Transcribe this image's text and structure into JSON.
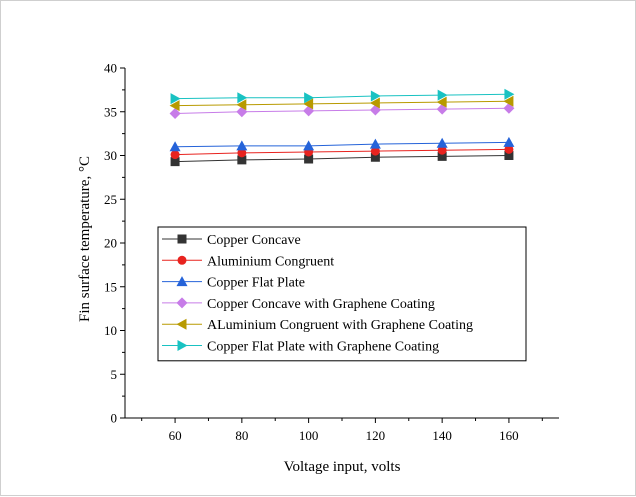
{
  "chart_data": {
    "type": "line",
    "xlabel": "Voltage input, volts",
    "ylabel": "Fin surface temperature, °C",
    "xlim": [
      45,
      175
    ],
    "ylim": [
      0,
      40
    ],
    "x": [
      60,
      80,
      100,
      120,
      140,
      160
    ],
    "x_ticks": [
      "60",
      "80",
      "100",
      "120",
      "140",
      "160"
    ],
    "y_ticks": [
      "0",
      "5",
      "10",
      "15",
      "20",
      "25",
      "30",
      "35",
      "40"
    ],
    "grid": false,
    "legend_position": "lower-left inside plot",
    "series": [
      {
        "name": "Copper Concave",
        "marker": "square",
        "color": "#333333",
        "values": [
          29.3,
          29.5,
          29.6,
          29.8,
          29.9,
          30.0
        ]
      },
      {
        "name": "Aluminium Congruent",
        "marker": "circle",
        "color": "#e8231f",
        "values": [
          30.1,
          30.3,
          30.4,
          30.5,
          30.6,
          30.7
        ]
      },
      {
        "name": "Copper Flat Plate",
        "marker": "triangle-up",
        "color": "#2563d9",
        "values": [
          31.0,
          31.1,
          31.1,
          31.3,
          31.4,
          31.5
        ]
      },
      {
        "name": "Copper Concave with Graphene Coating",
        "marker": "diamond",
        "color": "#c77ce8",
        "values": [
          34.8,
          35.0,
          35.1,
          35.2,
          35.3,
          35.4
        ]
      },
      {
        "name": "ALuminium Congruent with Graphene Coating",
        "marker": "triangle-left",
        "color": "#b89a00",
        "values": [
          35.7,
          35.8,
          35.9,
          36.0,
          36.1,
          36.2
        ]
      },
      {
        "name": "Copper Flat Plate with Graphene Coating",
        "marker": "triangle-right",
        "color": "#19c2c2",
        "values": [
          36.5,
          36.6,
          36.6,
          36.8,
          36.9,
          37.0
        ]
      }
    ]
  }
}
